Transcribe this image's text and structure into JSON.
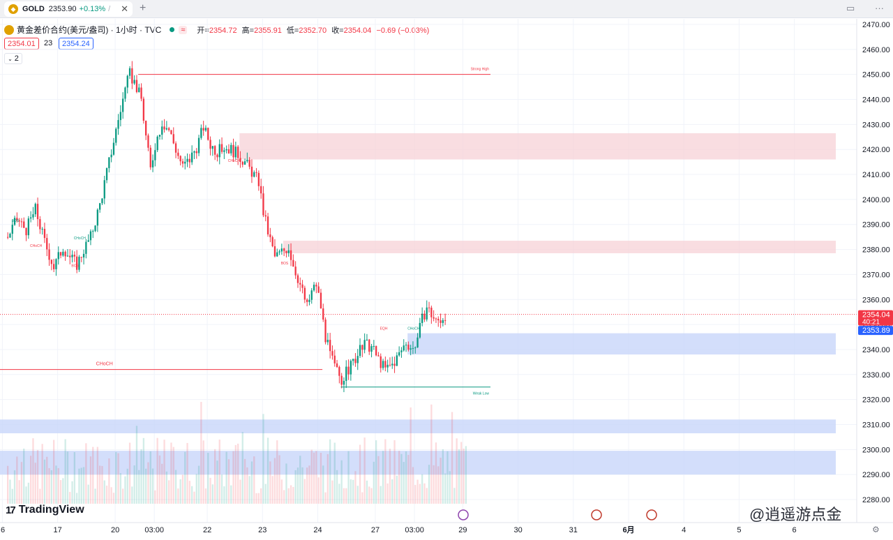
{
  "tab": {
    "symbol": "GOLD",
    "price": "2353.90",
    "change": "+0.13%",
    "slash": "/"
  },
  "legend": {
    "title": "黄金差价合约(美元/盎司) · 1小时 · TVC",
    "wave": "≈",
    "open_label": "开=",
    "open": "2354.72",
    "high_label": "高=",
    "high": "2355.91",
    "low_label": "低=",
    "low": "2352.70",
    "close_label": "收=",
    "close": "2354.04",
    "change": "−0.69 (−0.03%)"
  },
  "trade": {
    "sell": "2354.01",
    "spread": "23",
    "buy": "2354.24"
  },
  "indicator_count": "2",
  "branding": "TradingView",
  "watermark": "@逍遥游点金",
  "colors": {
    "up": "#089981",
    "down": "#f23645",
    "supply_zone": "#f7cfd4",
    "demand_zone": "#c8d6fa",
    "last_price_bg": "#f23645",
    "bid_bg": "#2962ff"
  },
  "chart_data": {
    "type": "candlestick",
    "timeframe": "1小时",
    "y_ticks": [
      2280,
      2290,
      2300,
      2310,
      2320,
      2330,
      2340,
      2350,
      2360,
      2370,
      2380,
      2390,
      2400,
      2410,
      2420,
      2430,
      2440,
      2450,
      2460,
      2470
    ],
    "y_tick_labels": [
      "2280.00",
      "2290.00",
      "2300.00",
      "2310.00",
      "2320.00",
      "2330.00",
      "2340.00",
      "2350.00",
      "2360.00",
      "2370.00",
      "2380.00",
      "2390.00",
      "2400.00",
      "2410.00",
      "2420.00",
      "2430.00",
      "2440.00",
      "2450.00",
      "2460.00",
      "2470.00"
    ],
    "ylim": [
      2275,
      2475
    ],
    "x_ticks": [
      {
        "label": "6",
        "bar": -2
      },
      {
        "label": "17",
        "bar": 22
      },
      {
        "label": "20",
        "bar": 47
      },
      {
        "label": "03:00",
        "bar": 64
      },
      {
        "label": "22",
        "bar": 87
      },
      {
        "label": "23",
        "bar": 111
      },
      {
        "label": "24",
        "bar": 135
      },
      {
        "label": "27",
        "bar": 160
      },
      {
        "label": "03:00",
        "bar": 177
      },
      {
        "label": "29",
        "bar": 198
      },
      {
        "label": "30",
        "bar": 222
      },
      {
        "label": "31",
        "bar": 246
      },
      {
        "label": "6月",
        "bar": 270
      },
      {
        "label": "4",
        "bar": 294
      },
      {
        "label": "5",
        "bar": 318
      },
      {
        "label": "6",
        "bar": 342
      }
    ],
    "bars_total": 360,
    "candle_points": [
      [
        0,
        2385
      ],
      [
        4,
        2392
      ],
      [
        8,
        2388
      ],
      [
        12,
        2396
      ],
      [
        16,
        2383
      ],
      [
        20,
        2373
      ],
      [
        24,
        2381
      ],
      [
        27,
        2377
      ],
      [
        30,
        2374
      ],
      [
        33,
        2380
      ],
      [
        36,
        2385
      ],
      [
        40,
        2398
      ],
      [
        44,
        2415
      ],
      [
        48,
        2432
      ],
      [
        51,
        2444
      ],
      [
        53,
        2450
      ],
      [
        55,
        2447
      ],
      [
        58,
        2440
      ],
      [
        60,
        2425
      ],
      [
        62,
        2412
      ],
      [
        64,
        2422
      ],
      [
        67,
        2431
      ],
      [
        70,
        2428
      ],
      [
        73,
        2420
      ],
      [
        76,
        2413
      ],
      [
        79,
        2416
      ],
      [
        82,
        2421
      ],
      [
        85,
        2429
      ],
      [
        88,
        2422
      ],
      [
        91,
        2419
      ],
      [
        94,
        2421
      ],
      [
        97,
        2420
      ],
      [
        100,
        2418
      ],
      [
        103,
        2415
      ],
      [
        106,
        2411
      ],
      [
        109,
        2407
      ],
      [
        111,
        2395
      ],
      [
        113,
        2387
      ],
      [
        116,
        2377
      ],
      [
        119,
        2379
      ],
      [
        122,
        2381
      ],
      [
        124,
        2374
      ],
      [
        127,
        2366
      ],
      [
        130,
        2357
      ],
      [
        132,
        2363
      ],
      [
        134,
        2366
      ],
      [
        136,
        2357
      ],
      [
        138,
        2345
      ],
      [
        140,
        2338
      ],
      [
        142,
        2333
      ],
      [
        145,
        2328
      ],
      [
        148,
        2332
      ],
      [
        152,
        2338
      ],
      [
        155,
        2342
      ],
      [
        158,
        2341
      ],
      [
        161,
        2336
      ],
      [
        164,
        2332
      ],
      [
        167,
        2334
      ],
      [
        170,
        2338
      ],
      [
        173,
        2343
      ],
      [
        176,
        2340
      ],
      [
        178,
        2345
      ],
      [
        180,
        2352
      ],
      [
        182,
        2357
      ],
      [
        184,
        2354
      ],
      [
        186,
        2351
      ],
      [
        188,
        2352
      ],
      [
        190,
        2354
      ]
    ],
    "zones": [
      {
        "kind": "supply",
        "from_bar": 101,
        "to_bar": 360,
        "low": 2416,
        "high": 2426.5
      },
      {
        "kind": "supply",
        "from_bar": 120,
        "to_bar": 360,
        "low": 2378.5,
        "high": 2383.5
      },
      {
        "kind": "demand",
        "from_bar": 174,
        "to_bar": 360,
        "low": 2338,
        "high": 2346.5
      },
      {
        "kind": "demand",
        "from_bar": -5,
        "to_bar": 360,
        "low": 2306.5,
        "high": 2312
      },
      {
        "kind": "demand",
        "from_bar": -5,
        "to_bar": 360,
        "low": 2290,
        "high": 2299.5
      }
    ],
    "levels": [
      {
        "label": "Strong High",
        "price": 2450,
        "from_bar": 57,
        "to_bar": 210,
        "color": "#f23645"
      },
      {
        "label": "Weak Low",
        "price": 2325,
        "from_bar": 145,
        "to_bar": 210,
        "color": "#089981"
      },
      {
        "label": "CHoCH",
        "price": 2332,
        "from_bar": -5,
        "to_bar": 137,
        "color": "#f23645"
      }
    ],
    "annotations": [
      {
        "label": "BOS",
        "bar": 2,
        "price": 2391,
        "color": "#089981"
      },
      {
        "label": "CHoCH",
        "bar": 10,
        "price": 2381,
        "color": "#f23645"
      },
      {
        "label": "CHoCH",
        "bar": 29,
        "price": 2384,
        "color": "#089981"
      },
      {
        "label": "BOS",
        "bar": 28,
        "price": 2373,
        "color": "#f23645"
      },
      {
        "label": "CHoCH",
        "bar": 96,
        "price": 2415,
        "color": "#f23645"
      },
      {
        "label": "BOS",
        "bar": 119,
        "price": 2374,
        "color": "#f23645"
      },
      {
        "label": "EQH",
        "bar": 162,
        "price": 2348,
        "color": "#f23645"
      },
      {
        "label": "CHoCH",
        "bar": 174,
        "price": 2348,
        "color": "#089981"
      },
      {
        "label": "CHoCH",
        "bar": 46,
        "price": 2330,
        "color": "#f23645"
      }
    ],
    "last_price": "2354.04",
    "countdown": "40:21",
    "bid_price": "2353.89",
    "grid": true
  }
}
